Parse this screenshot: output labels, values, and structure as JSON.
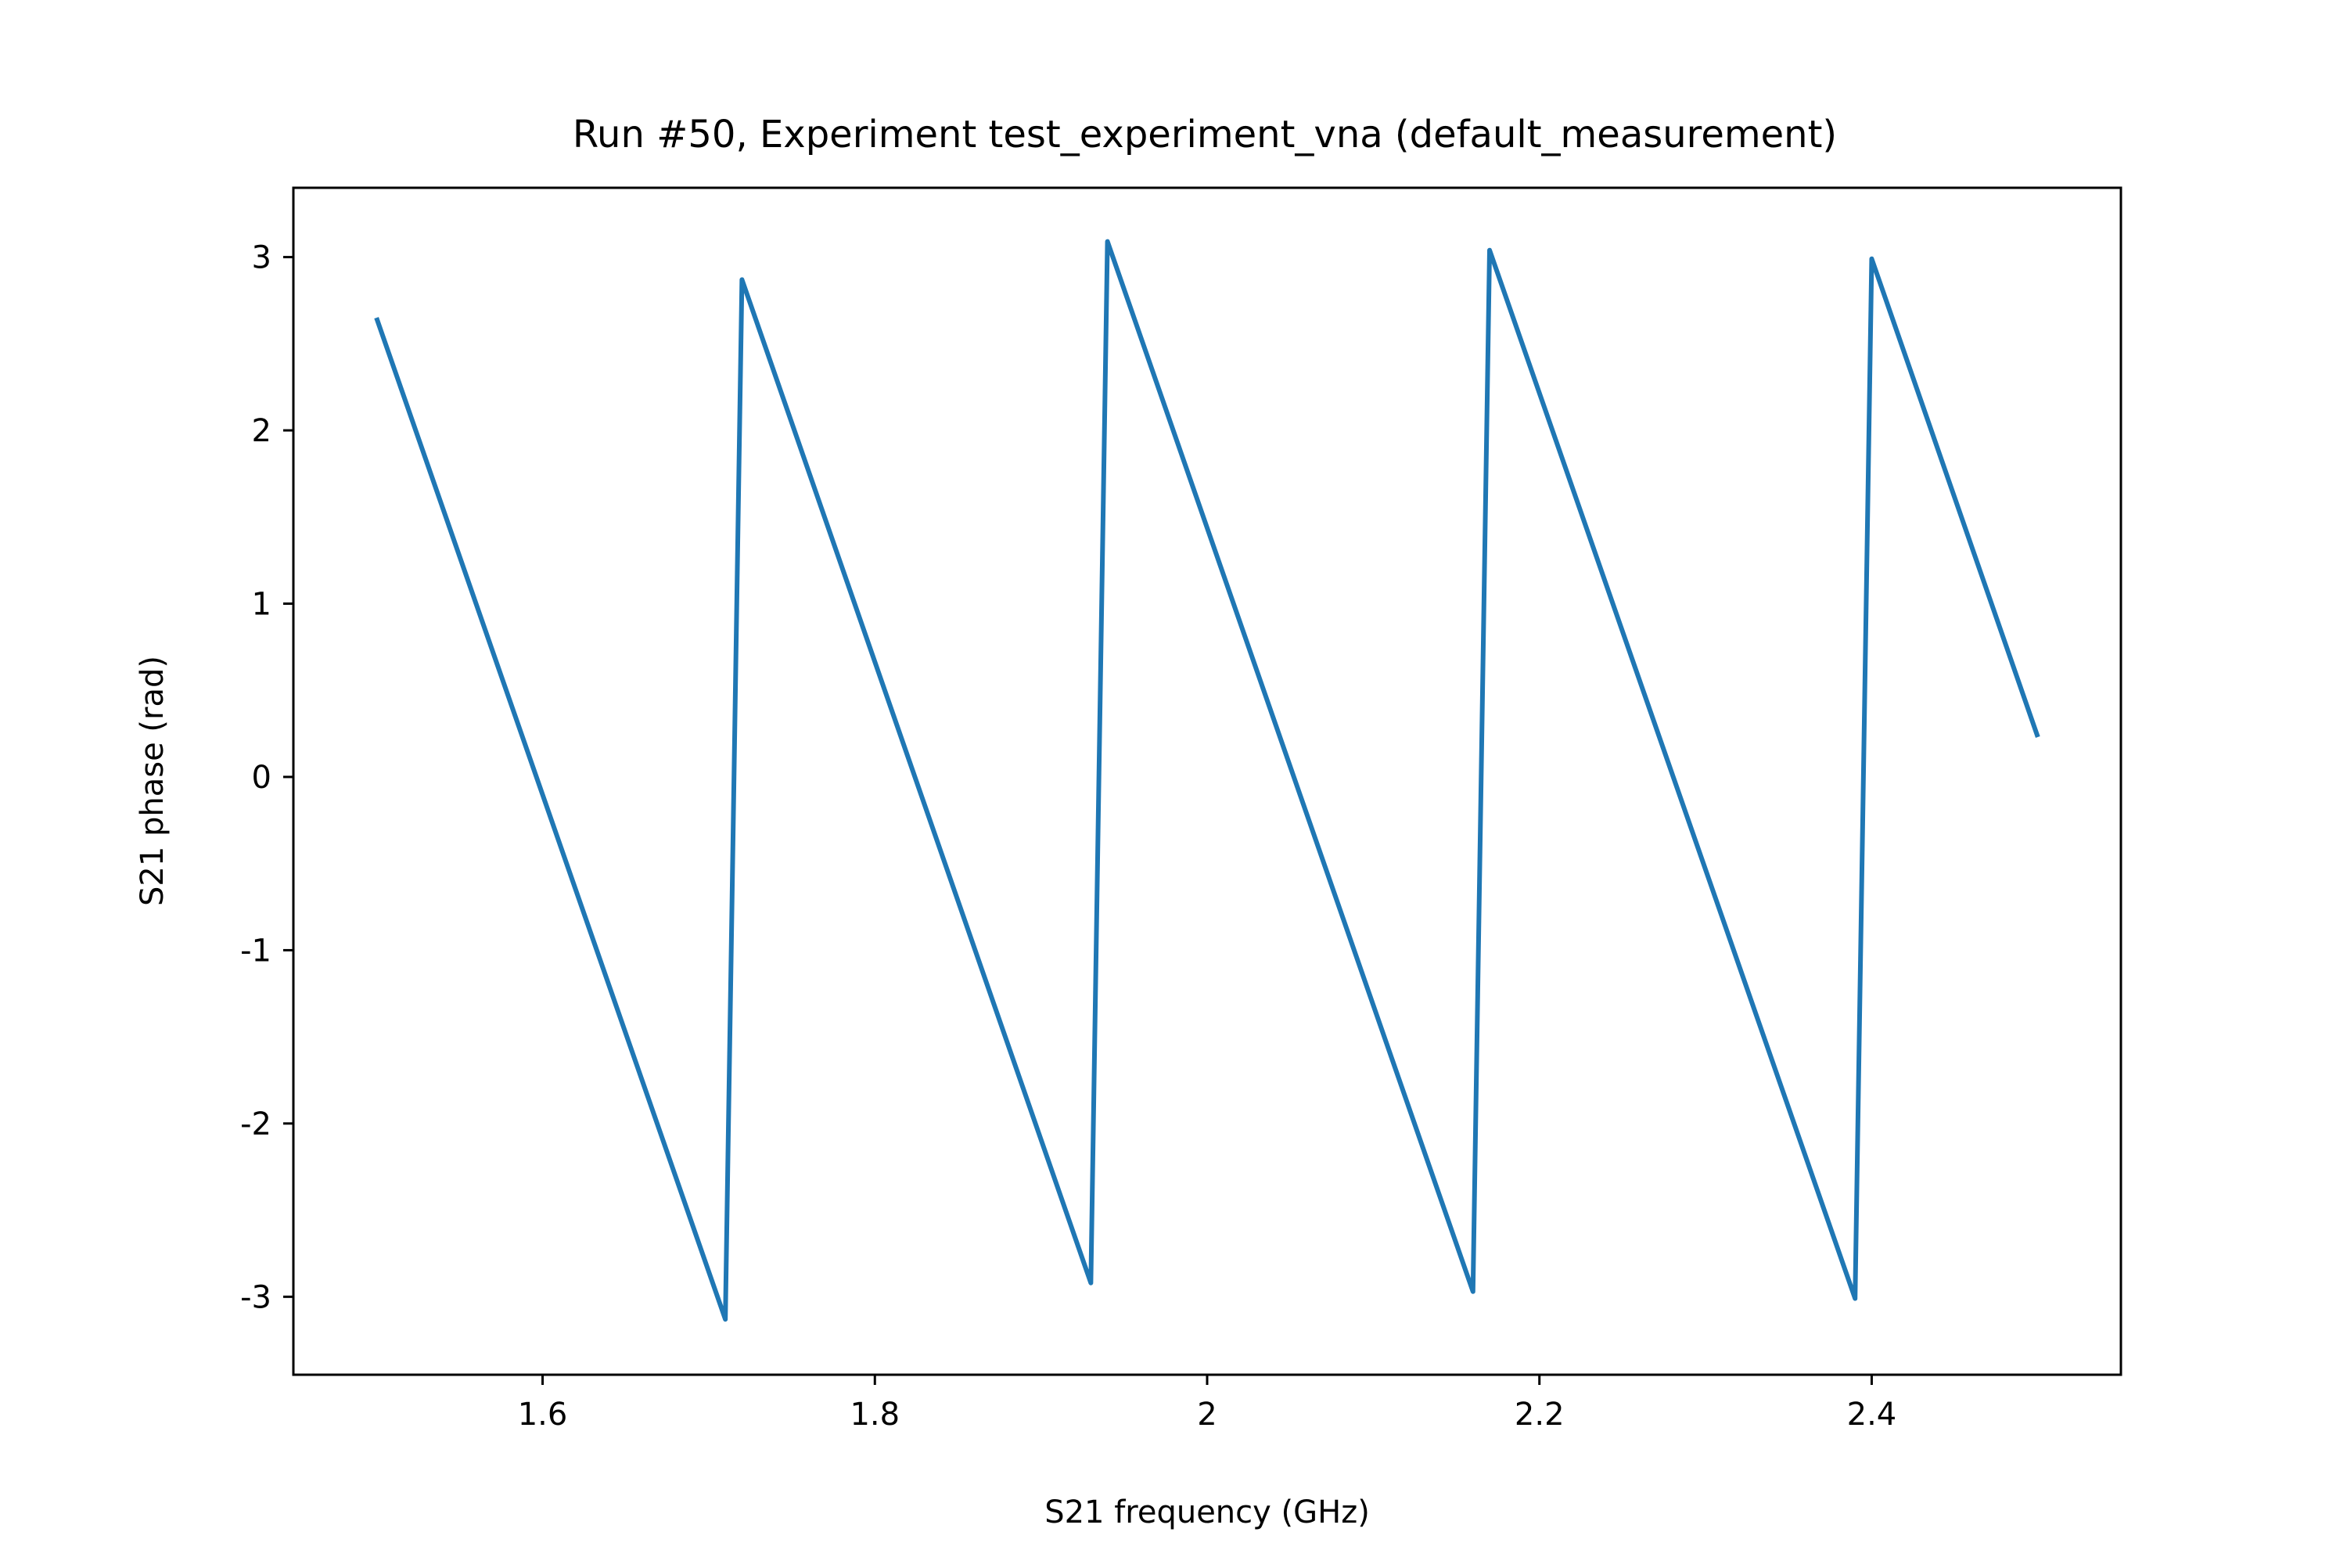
{
  "chart_data": {
    "type": "line",
    "title": "Run #50, Experiment test_experiment_vna (default_measurement)",
    "xlabel": "S21 frequency (GHz)",
    "ylabel": "S21 phase (rad)",
    "xlim": [
      1.45,
      2.55
    ],
    "ylim": [
      -3.45,
      3.4
    ],
    "xticks": [
      1.6,
      1.8,
      2.0,
      2.2,
      2.4
    ],
    "xtick_labels": [
      "1.6",
      "1.8",
      "2",
      "2.2",
      "2.4"
    ],
    "yticks": [
      3,
      2,
      1,
      0,
      -1,
      -2,
      -3
    ],
    "ytick_labels": [
      "3",
      "2",
      "1",
      "0",
      "-1",
      "-2",
      "-3"
    ],
    "grid": false,
    "legend": false,
    "series": [
      {
        "color": "#1f77b4",
        "x": [
          1.5,
          1.71,
          1.72,
          1.93,
          1.94,
          2.16,
          2.17,
          2.39,
          2.4,
          2.5
        ],
        "y": [
          2.65,
          -3.13,
          2.87,
          -2.92,
          3.09,
          -2.97,
          3.04,
          -3.01,
          2.99,
          0.23
        ]
      }
    ]
  }
}
